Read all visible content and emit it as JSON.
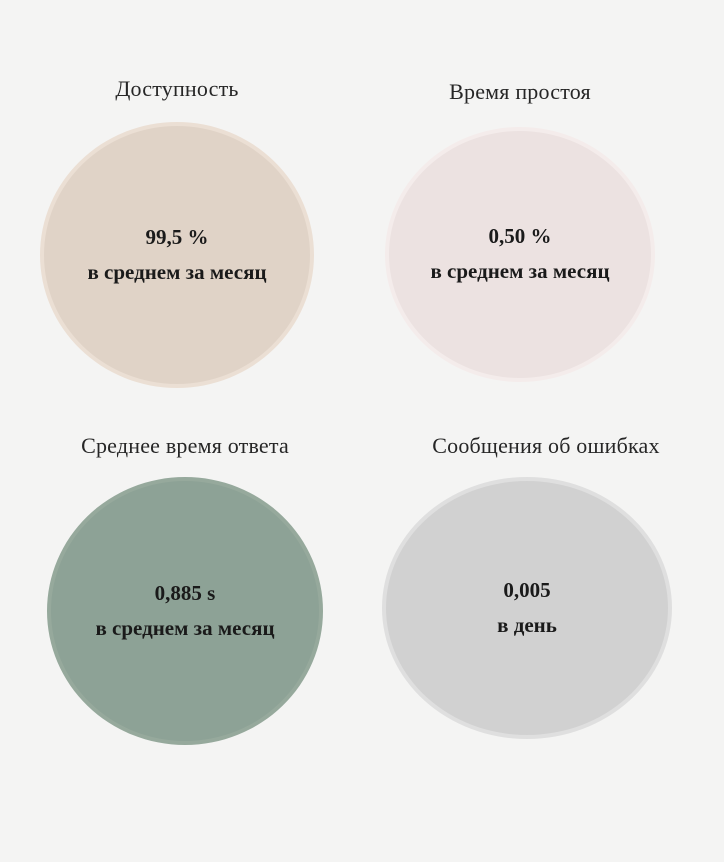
{
  "page": {
    "background": "#f4f4f3",
    "text_color": "#1a1a1a"
  },
  "kpis": [
    {
      "title": "Доступность",
      "value": "99,5 %",
      "caption": "в среднем за месяц",
      "fill": "#e0d3c7",
      "rim": "#ebdfd4"
    },
    {
      "title": "Время простоя",
      "value": "0,50 %",
      "caption": "в среднем за месяц",
      "fill": "#ece2e1",
      "rim": "#f4eceb"
    },
    {
      "title": "Среднее время ответа",
      "value": "0,885 s",
      "caption": "в среднем за месяц",
      "fill": "#8da296",
      "rim": "#96a99c"
    },
    {
      "title": "Сообщения об ошибках",
      "value": "0,005",
      "caption": "в день",
      "fill": "#d1d1d1",
      "rim": "#dfdfdf"
    }
  ],
  "chart_data": {
    "type": "table",
    "title": "",
    "metrics": [
      {
        "label": "Доступность",
        "value": "99,5 %",
        "period": "в среднем за месяц"
      },
      {
        "label": "Время простоя",
        "value": "0,50 %",
        "period": "в среднем за месяц"
      },
      {
        "label": "Среднее время ответа",
        "value": "0,885 s",
        "period": "в среднем за месяц"
      },
      {
        "label": "Сообщения об ошибках",
        "value": "0,005",
        "period": "в день"
      }
    ]
  }
}
